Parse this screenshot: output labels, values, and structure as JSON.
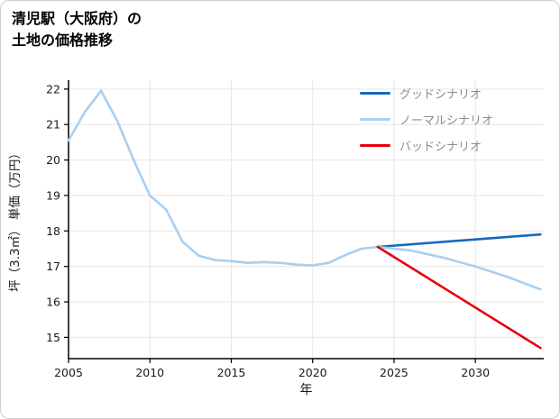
{
  "title": "清児駅（大阪府）の\n土地の価格推移",
  "chart_data": {
    "type": "line",
    "title": "清児駅（大阪府）の土地の価格推移",
    "xlabel": "年",
    "ylabel": "坪（3.3㎡） 単価（万円）",
    "xlim": [
      2005,
      2034.2
    ],
    "ylim": [
      14.4,
      22.25
    ],
    "xticks": [
      2005,
      2010,
      2015,
      2020,
      2025,
      2030
    ],
    "yticks": [
      15,
      16,
      17,
      18,
      19,
      20,
      21,
      22
    ],
    "grid": true,
    "grid_color": "#e6e6e6",
    "axis_color": "#000000",
    "tick_label_color": "#1a1a1a",
    "legend_position": "top-right",
    "series": [
      {
        "name": "history",
        "color": "#a8cff0",
        "points": [
          [
            2005,
            20.55
          ],
          [
            2006,
            21.35
          ],
          [
            2007,
            21.95
          ],
          [
            2008,
            21.1
          ],
          [
            2009,
            20.0
          ],
          [
            2010,
            19.0
          ],
          [
            2011,
            18.6
          ],
          [
            2012,
            17.7
          ],
          [
            2013,
            17.3
          ],
          [
            2014,
            17.18
          ],
          [
            2015,
            17.15
          ],
          [
            2016,
            17.1
          ],
          [
            2017,
            17.12
          ],
          [
            2018,
            17.1
          ],
          [
            2019,
            17.05
          ],
          [
            2020,
            17.03
          ],
          [
            2021,
            17.1
          ],
          [
            2022,
            17.32
          ],
          [
            2023,
            17.5
          ],
          [
            2024,
            17.55
          ]
        ]
      },
      {
        "name": "グッドシナリオ",
        "color": "#1669bb",
        "points": [
          [
            2024,
            17.55
          ],
          [
            2034,
            17.9
          ]
        ]
      },
      {
        "name": "ノーマルシナリオ",
        "color": "#a8cff0",
        "points": [
          [
            2024,
            17.55
          ],
          [
            2026,
            17.45
          ],
          [
            2028,
            17.25
          ],
          [
            2030,
            17.0
          ],
          [
            2032,
            16.7
          ],
          [
            2034,
            16.35
          ]
        ]
      },
      {
        "name": "バッドシナリオ",
        "color": "#e8000b",
        "points": [
          [
            2024,
            17.55
          ],
          [
            2034,
            14.7
          ]
        ]
      }
    ],
    "legend": [
      {
        "label": "グッドシナリオ",
        "color": "#1669bb"
      },
      {
        "label": "ノーマルシナリオ",
        "color": "#a8cff0"
      },
      {
        "label": "バッドシナリオ",
        "color": "#e8000b"
      }
    ]
  }
}
